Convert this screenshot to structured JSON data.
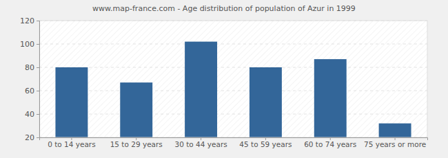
{
  "chart_data": {
    "type": "bar",
    "title": "www.map-france.com - Age distribution of population of Azur in 1999",
    "categories": [
      "0 to 14 years",
      "15 to 29 years",
      "30 to 44 years",
      "45 to 59 years",
      "60 to 74 years",
      "75 years or more"
    ],
    "values": [
      80,
      67,
      102,
      80,
      87,
      32
    ],
    "color": "#336699",
    "ylim": [
      20,
      120
    ],
    "yticks": [
      20,
      40,
      60,
      80,
      100,
      120
    ],
    "grid": true
  }
}
